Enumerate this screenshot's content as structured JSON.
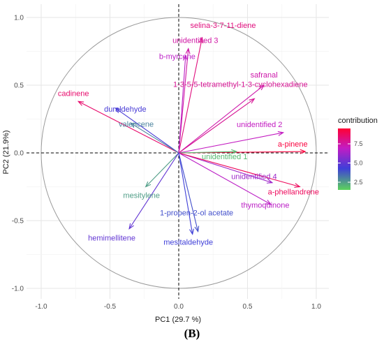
{
  "panel_label": "(B)",
  "chart_data": {
    "type": "scatter",
    "subtype": "pca-variable-correlation-circle",
    "xlabel": "PC1 (29.7 %)",
    "ylabel": "PC2 (21.9%)",
    "xlim": [
      -1.1,
      1.05
    ],
    "ylim": [
      -1.05,
      1.05
    ],
    "x_ticks": [
      -1.0,
      -0.5,
      0.0,
      0.5,
      1.0
    ],
    "x_tick_labels": [
      "-1.0",
      "-0.5",
      "0.0",
      "0.5",
      "1.0"
    ],
    "y_ticks": [
      -1.0,
      -0.5,
      0.0,
      0.5,
      1.0
    ],
    "y_tick_labels": [
      "-1.0",
      "-0.5",
      "0.0",
      "0.5",
      "1.0"
    ],
    "grid": true,
    "unit_circle": true,
    "reference_lines": "dashed lines at x=0 and y=0",
    "legend": {
      "title": "contribution",
      "position": "right",
      "ticks": [
        2.5,
        5.0,
        7.5
      ],
      "tick_labels": [
        "2.5",
        "5.0",
        "7.5"
      ],
      "range": [
        1.5,
        9.5
      ],
      "colors": [
        "#5bd35b",
        "#3f3fd8",
        "#c21cc4",
        "#ff0033"
      ]
    },
    "variables": [
      {
        "label": "selina-3-7-11-diene",
        "x": 0.17,
        "y": 0.85,
        "contribution": 8.2
      },
      {
        "label": "unidentified 3",
        "x": 0.07,
        "y": 0.77,
        "contribution": 7.5
      },
      {
        "label": "b-myrcene",
        "x": 0.05,
        "y": 0.72,
        "contribution": 6.8
      },
      {
        "label": "safranal",
        "x": 0.62,
        "y": 0.5,
        "contribution": 7.4
      },
      {
        "label": "1-3-5-5-tetramethyl-1-3-cyclohexadiene",
        "x": 0.55,
        "y": 0.4,
        "contribution": 7.8
      },
      {
        "label": "cadinene",
        "x": -0.73,
        "y": 0.38,
        "contribution": 8.5
      },
      {
        "label": "duraldehyde",
        "x": -0.46,
        "y": 0.33,
        "contribution": 4.5
      },
      {
        "label": "valencene",
        "x": -0.35,
        "y": 0.22,
        "contribution": 3.0
      },
      {
        "label": "unidentified 2",
        "x": 0.76,
        "y": 0.15,
        "contribution": 7.0
      },
      {
        "label": "a-pinene",
        "x": 0.92,
        "y": 0.01,
        "contribution": 9.3
      },
      {
        "label": "unidentified 1",
        "x": 0.42,
        "y": 0.01,
        "contribution": 2.0
      },
      {
        "label": "unidentified 4",
        "x": 0.68,
        "y": -0.22,
        "contribution": 6.2
      },
      {
        "label": "a-phellandrene",
        "x": 0.88,
        "y": -0.25,
        "contribution": 8.8
      },
      {
        "label": "thymoquinone",
        "x": 0.67,
        "y": -0.38,
        "contribution": 6.8
      },
      {
        "label": "mesitylene",
        "x": -0.24,
        "y": -0.25,
        "contribution": 2.5
      },
      {
        "label": "hemimellitene",
        "x": -0.36,
        "y": -0.56,
        "contribution": 5.0
      },
      {
        "label": "1-propen-2-ol acetate",
        "x": 0.14,
        "y": -0.58,
        "contribution": 4.0
      },
      {
        "label": "mesitaldehyde",
        "x": 0.1,
        "y": -0.6,
        "contribution": 4.3
      }
    ]
  }
}
